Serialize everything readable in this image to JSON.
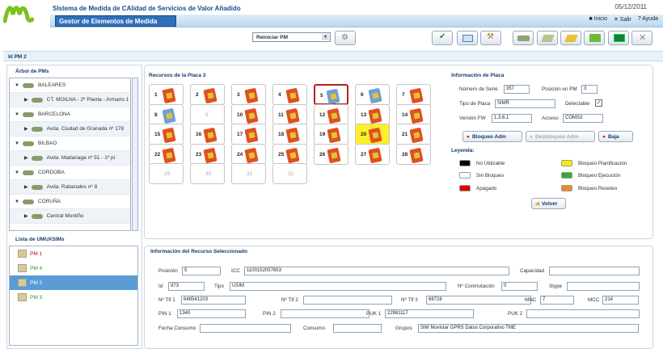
{
  "header": {
    "app_title": "SIstema de Medida de CAlidad de Servicios de Valor Añadido",
    "subtitle": "Gestor de Elementos de Medida",
    "date": "05/12/2011",
    "nav": [
      "Inicio",
      "Salir",
      "Ayuda"
    ]
  },
  "toolbar": {
    "select_value": "Reiniciar PM"
  },
  "section": {
    "title": "Id PM 2"
  },
  "left": {
    "tree_label": "Árbol de PMs",
    "list_label": "Lista de UMUXSIMs",
    "tree": [
      {
        "label": "BALEARES",
        "child": false
      },
      {
        "label": "CT. MOILNA - 2ª Planta - Armario 1",
        "child": true
      },
      {
        "label": "BARCELONA",
        "child": false
      },
      {
        "label": "Avda. Ciudad de Granada nº 178",
        "child": true
      },
      {
        "label": "BILBAO",
        "child": false
      },
      {
        "label": "Avda. Madariaga nº 51 - 1º pi",
        "child": true
      },
      {
        "label": "CORDOBA",
        "child": false
      },
      {
        "label": "Avda. Rabanales nº 8",
        "child": true
      },
      {
        "label": "CORUÑA",
        "child": false
      },
      {
        "label": "Central Montiño",
        "child": true
      }
    ],
    "pms": [
      {
        "label": "PM 1",
        "color": "#c00000"
      },
      {
        "label": "PM 4",
        "color": "#2f8f2f"
      },
      {
        "label": "PM 2",
        "color": "#ffffff"
      },
      {
        "label": "PM 3",
        "color": "#2f8f2f"
      }
    ]
  },
  "resources": {
    "title": "Recursos  de la Placa 3",
    "cells": [
      {
        "n": "1",
        "s": "red"
      },
      {
        "n": "2",
        "s": "red"
      },
      {
        "n": "3",
        "s": "red"
      },
      {
        "n": "4",
        "s": "red"
      },
      {
        "n": "5",
        "s": "blue",
        "sel": true
      },
      {
        "n": "6",
        "s": "blue"
      },
      {
        "n": "7",
        "s": "red"
      },
      {
        "n": "8",
        "s": "blue"
      },
      {
        "n": "9",
        "s": "none"
      },
      {
        "n": "10",
        "s": "red"
      },
      {
        "n": "11",
        "s": "red"
      },
      {
        "n": "12",
        "s": "red"
      },
      {
        "n": "13",
        "s": "red"
      },
      {
        "n": "14",
        "s": "red"
      },
      {
        "n": "15",
        "s": "red"
      },
      {
        "n": "16",
        "s": "red"
      },
      {
        "n": "17",
        "s": "red"
      },
      {
        "n": "18",
        "s": "red"
      },
      {
        "n": "19",
        "s": "red"
      },
      {
        "n": "20",
        "s": "red",
        "yel": true
      },
      {
        "n": "21",
        "s": "red"
      },
      {
        "n": "22",
        "s": "red"
      },
      {
        "n": "23",
        "s": "red"
      },
      {
        "n": "24",
        "s": "red"
      },
      {
        "n": "25",
        "s": "red"
      },
      {
        "n": "26",
        "s": "red"
      },
      {
        "n": "27",
        "s": "red"
      },
      {
        "n": "28",
        "s": "red"
      },
      {
        "n": "29",
        "s": "none"
      },
      {
        "n": "30",
        "s": "none"
      },
      {
        "n": "31",
        "s": "none"
      },
      {
        "n": "32",
        "s": "none"
      }
    ]
  },
  "placa": {
    "title": "Información de Placa",
    "serie_label": "Número de Serie",
    "serie": "357",
    "posicion_label": "Posición en PM",
    "posicion": "3",
    "tipo_label": "Tipo de Placa",
    "tipo": "SIMR",
    "detectable_label": "Detectable",
    "fw_label": "Versión FW",
    "fw": "1.3.6.1",
    "acceso_label": "Acceso",
    "acceso": "COMS3",
    "bloqueo": "Bloqueo Adm",
    "desbloqueo": "Desbloqueo Adm",
    "baja": "Baja",
    "legend_title": "Leyenda:",
    "legend": [
      {
        "label": "No Utilizable",
        "color": "#000000"
      },
      {
        "label": "Bloqueo Planificación",
        "color": "#ffee00"
      },
      {
        "label": "Sin Bloqueo",
        "color": "#ffffff"
      },
      {
        "label": "Bloqueo Ejecución",
        "color": "#2fae2f"
      },
      {
        "label": "Apagado",
        "color": "#dd0000"
      },
      {
        "label": "Bloqueo Reseteo",
        "color": "#f08a24"
      }
    ],
    "volver": "Volver"
  },
  "recurso": {
    "title": "Información del Recurso Seleccionado",
    "posicion_label": "Posición",
    "posicion": "5",
    "icc_label": "ICC",
    "icc": "1100152057653",
    "capacidad_label": "Capacidad",
    "capacidad": "",
    "id_label": "Id",
    "id": "973",
    "tipo_label": "Tipo",
    "tipo": "USIM",
    "conm_label": "Nº Conmutación",
    "conm": "0",
    "stype_label": "Stype",
    "stype": "",
    "tlf1_label": "Nº Tlf 1",
    "tlf1": "648541203",
    "tlf2_label": "Nº Tlf 2",
    "tlf2": "",
    "tlf3_label": "Nº Tlf 3",
    "tlf3": "68728",
    "mnc_label": "MNC",
    "mnc": "7",
    "mcc_label": "MCC",
    "mcc": "214",
    "pin1_label": "PIN 1",
    "pin1": "1340",
    "pin2_label": "PIN 2",
    "pin2": "",
    "puk1_label": "PUK 1",
    "puk1": "22981117",
    "puk2_label": "PUK 2",
    "puk2": "",
    "fecha_label": "Fecha Consumo",
    "fecha": "",
    "consumo_label": "Consumo",
    "consumo": "",
    "grupos_label": "Grupos",
    "grupos": "SIM Movistar GPRS Datos Corporativo TME"
  }
}
